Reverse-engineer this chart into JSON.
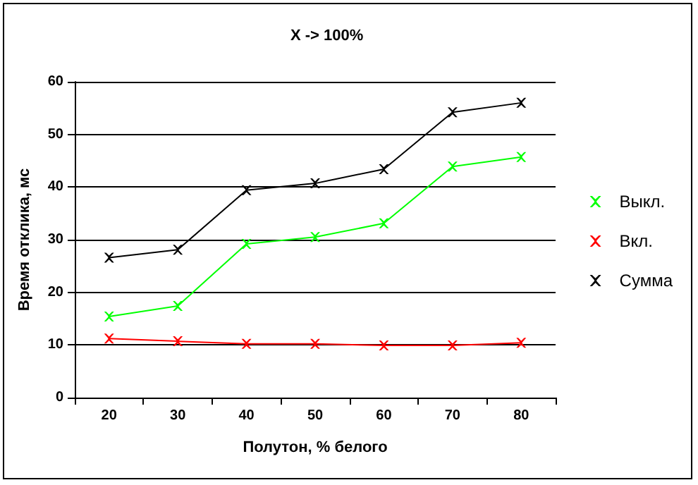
{
  "chart_data": {
    "type": "line",
    "title": "X -> 100%",
    "xlabel": "Полутон, % белого",
    "ylabel": "Время отклика, мс",
    "categories": [
      "20",
      "30",
      "40",
      "50",
      "60",
      "70",
      "80"
    ],
    "series": [
      {
        "name": "Выкл.",
        "color": "#00ff00",
        "values": [
          15.4,
          17.4,
          29.2,
          30.5,
          33.1,
          43.9,
          45.7
        ]
      },
      {
        "name": "Вкл.",
        "color": "#ff0000",
        "values": [
          11.2,
          10.7,
          10.2,
          10.2,
          9.9,
          9.9,
          10.4
        ]
      },
      {
        "name": "Сумма",
        "color": "#000000",
        "values": [
          26.6,
          28.1,
          39.4,
          40.7,
          43.4,
          54.2,
          56.0
        ]
      }
    ],
    "ylim": [
      0,
      60
    ],
    "yticks": [
      0,
      10,
      20,
      30,
      40,
      50,
      60
    ],
    "grid": "y",
    "legend": "right",
    "marker": "cross",
    "line_style": "solid"
  }
}
